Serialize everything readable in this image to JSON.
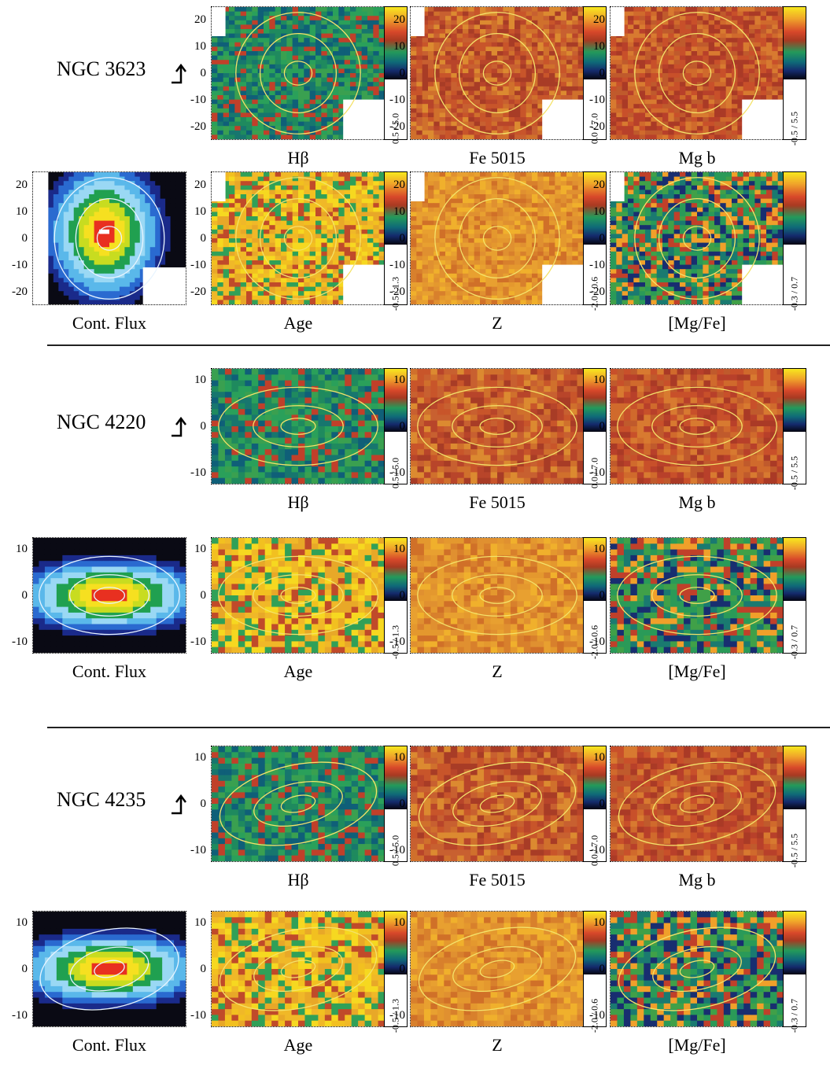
{
  "galaxies": [
    {
      "name": "NGC 3623",
      "y_ticks": [
        "20",
        "10",
        "0",
        "-10",
        "-20"
      ],
      "captions": [
        "Hβ",
        "Fe 5015",
        "Mg b",
        "Cont. Flux",
        "Age",
        "Z",
        "[Mg/Fe]"
      ],
      "ranges": [
        "0.5 / 5.0",
        "0.0 / 7.0",
        "-0.5 / 5.5",
        "-0.5 / 1.3",
        "-2.0 / 0.6",
        "-0.3 / 0.7"
      ]
    },
    {
      "name": "NGC 4220",
      "y_ticks": [
        "10",
        "0",
        "-10"
      ],
      "captions": [
        "Hβ",
        "Fe 5015",
        "Mg b",
        "Cont. Flux",
        "Age",
        "Z",
        "[Mg/Fe]"
      ],
      "ranges": [
        "0.5 / 5.0",
        "0.0 / 7.0",
        "-0.5 / 5.5",
        "-0.5 / 1.3",
        "-2.0 / 0.6",
        "-0.3 / 0.7"
      ]
    },
    {
      "name": "NGC 4235",
      "y_ticks": [
        "10",
        "0",
        "-10"
      ],
      "captions": [
        "Hβ",
        "Fe 5015",
        "Mg b",
        "Cont. Flux",
        "Age",
        "Z",
        "[Mg/Fe]"
      ],
      "ranges": [
        "0.5 / 5.0",
        "0.0 / 7.0",
        "-0.5 / 5.5",
        "-0.5 / 1.3",
        "-2.0 / 0.6",
        "-0.3 / 0.7"
      ]
    }
  ],
  "palette": {
    "hb": [
      "#1f8a5e",
      "#17766e",
      "#2aa05a",
      "#c0402a",
      "#0f5f78",
      "#3aa050"
    ],
    "fe": [
      "#c8552a",
      "#d0702c",
      "#b8452a",
      "#dc8a30",
      "#a83c26",
      "#c86030"
    ],
    "mg": [
      "#c8502a",
      "#d06a2c",
      "#b8402a",
      "#d87a30",
      "#c05a2c",
      "#aa3a26"
    ],
    "age": [
      "#f2c020",
      "#e8a828",
      "#f6d820",
      "#30a058",
      "#c04a2a",
      "#f0b828"
    ],
    "z": [
      "#e09030",
      "#e8a030",
      "#d8802c",
      "#f0b02c",
      "#d07028",
      "#e4982e"
    ],
    "mgfe": [
      "#2a9a58",
      "#1a7a70",
      "#c0402a",
      "#f0a02a",
      "#182e70",
      "#40a048"
    ],
    "flux_stops": [
      "#0a0a14",
      "#1a2a8a",
      "#2a6ad0",
      "#5ab8ea",
      "#9ad8f4",
      "#20a050",
      "#c8dc20",
      "#f6e020",
      "#e83020",
      "#ffffff"
    ],
    "contour": "#f4e26a",
    "flux_contour": "#e8f4ff"
  }
}
